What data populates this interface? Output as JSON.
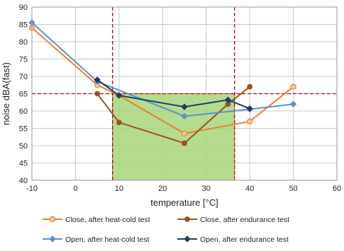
{
  "chart_data": {
    "type": "line",
    "xlabel": "temperature [°C]",
    "ylabel": "noise dBA(fast)",
    "xlim": [
      -10,
      60
    ],
    "ylim": [
      40,
      90
    ],
    "x_ticks": [
      -10,
      0,
      10,
      20,
      30,
      40,
      50,
      60
    ],
    "y_ticks": [
      40,
      45,
      50,
      55,
      60,
      65,
      70,
      75,
      80,
      85,
      90
    ],
    "grid": true,
    "legend_position": "bottom",
    "limits": {
      "x_low": 8.5,
      "x_high": 36.5,
      "y_high": 65,
      "y_low": 40,
      "region_color": "#a8d67a",
      "line_color": "#c0000a"
    },
    "series": [
      {
        "name": "Close,  after heat-cold test",
        "color": "#e8822e",
        "marker": "circle-open",
        "points": [
          [
            -10,
            84
          ],
          [
            5,
            67.5
          ],
          [
            10,
            64.5
          ],
          [
            25,
            53.5
          ],
          [
            40,
            57
          ],
          [
            50,
            67
          ]
        ]
      },
      {
        "name": "Close, after endurance test",
        "color": "#a0521d",
        "marker": "circle",
        "points": [
          [
            5,
            65
          ],
          [
            10,
            56.7
          ],
          [
            25,
            50.7
          ],
          [
            35,
            62
          ],
          [
            40,
            67
          ]
        ]
      },
      {
        "name": "Open, after heat-cold test",
        "color": "#5b8fd0",
        "marker": "diamond",
        "points": [
          [
            -10,
            85.5
          ],
          [
            5,
            68.5
          ],
          [
            25,
            58.5
          ],
          [
            40,
            60.5
          ],
          [
            50,
            62
          ]
        ]
      },
      {
        "name": "Open, after endurance test",
        "color": "#1f3d6e",
        "marker": "diamond",
        "points": [
          [
            5,
            69
          ],
          [
            10,
            64.5
          ],
          [
            25,
            61.2
          ],
          [
            35,
            63.2
          ],
          [
            40,
            60.7
          ]
        ]
      }
    ]
  }
}
